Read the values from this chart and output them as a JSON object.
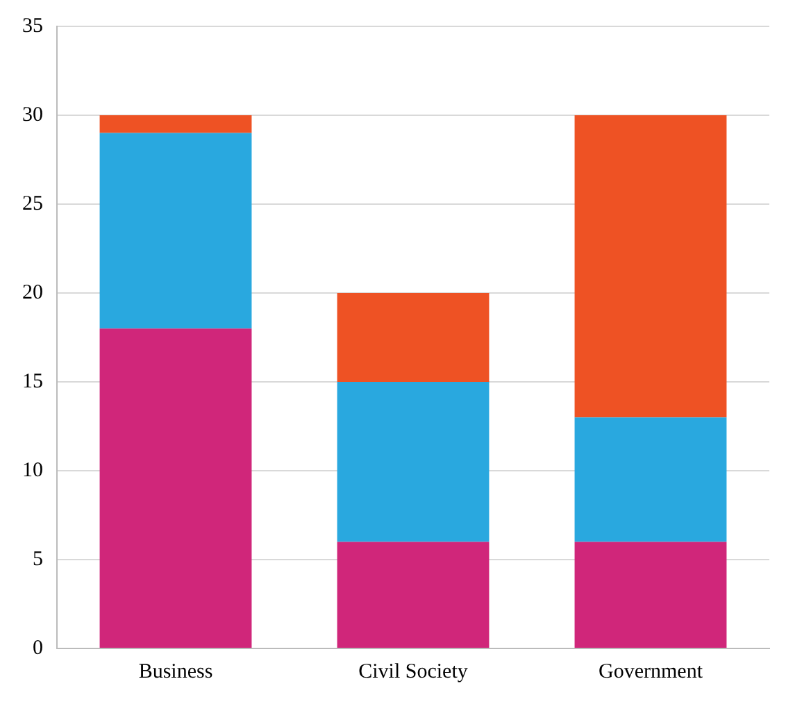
{
  "chart_data": {
    "type": "bar",
    "stacked": true,
    "categories": [
      "Business",
      "Civil Society",
      "Government"
    ],
    "series": [
      {
        "color": "#d0267a",
        "values": [
          18,
          6,
          6
        ]
      },
      {
        "color": "#29a8df",
        "values": [
          11,
          9,
          7
        ]
      },
      {
        "color": "#ee5224",
        "values": [
          1,
          5,
          17
        ]
      }
    ],
    "ylim": [
      0,
      35
    ],
    "yticks": [
      0,
      5,
      10,
      15,
      20,
      25,
      30,
      35
    ],
    "grid": "y",
    "legend": false
  }
}
